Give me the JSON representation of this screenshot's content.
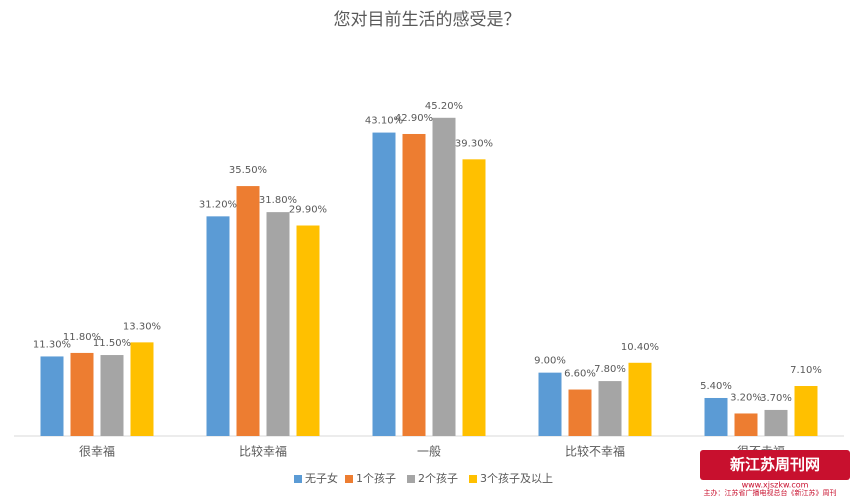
{
  "chart_data": {
    "type": "bar",
    "title": "您对目前生活的感受是？",
    "categories": [
      "很幸福",
      "比较幸福",
      "一般",
      "比较不幸福",
      "很不幸福"
    ],
    "series": [
      {
        "name": "无子女",
        "color": "#5b9bd5",
        "values": [
          11.3,
          31.2,
          43.1,
          9.0,
          5.4
        ],
        "value_labels": [
          "11.30%",
          "31.20%",
          "43.10%",
          "9.00%",
          "5.40%"
        ]
      },
      {
        "name": "1个孩子",
        "color": "#ed7d31",
        "values": [
          11.8,
          35.5,
          42.9,
          6.6,
          3.2
        ],
        "value_labels": [
          "11.80%",
          "35.50%",
          "42.90%",
          "6.60%",
          "3.20%"
        ]
      },
      {
        "name": "2个孩子",
        "color": "#a5a5a5",
        "values": [
          11.5,
          31.8,
          45.2,
          7.8,
          3.7
        ],
        "value_labels": [
          "11.50%",
          "31.80%",
          "45.20%",
          "7.80%",
          "3.70%"
        ]
      },
      {
        "name": "3个孩子及以上",
        "color": "#ffc000",
        "values": [
          13.3,
          29.9,
          39.3,
          10.4,
          7.1
        ],
        "value_labels": [
          "13.30%",
          "29.90%",
          "39.30%",
          "10.40%",
          "7.10%"
        ]
      }
    ],
    "ylim": [
      0,
      50
    ],
    "legend": "bottom"
  },
  "watermark": {
    "logo": "新江苏周刊网",
    "url": "www.xjszkw.com",
    "sponsor": "主办：江苏省广播电视总台《新江苏》周刊"
  }
}
